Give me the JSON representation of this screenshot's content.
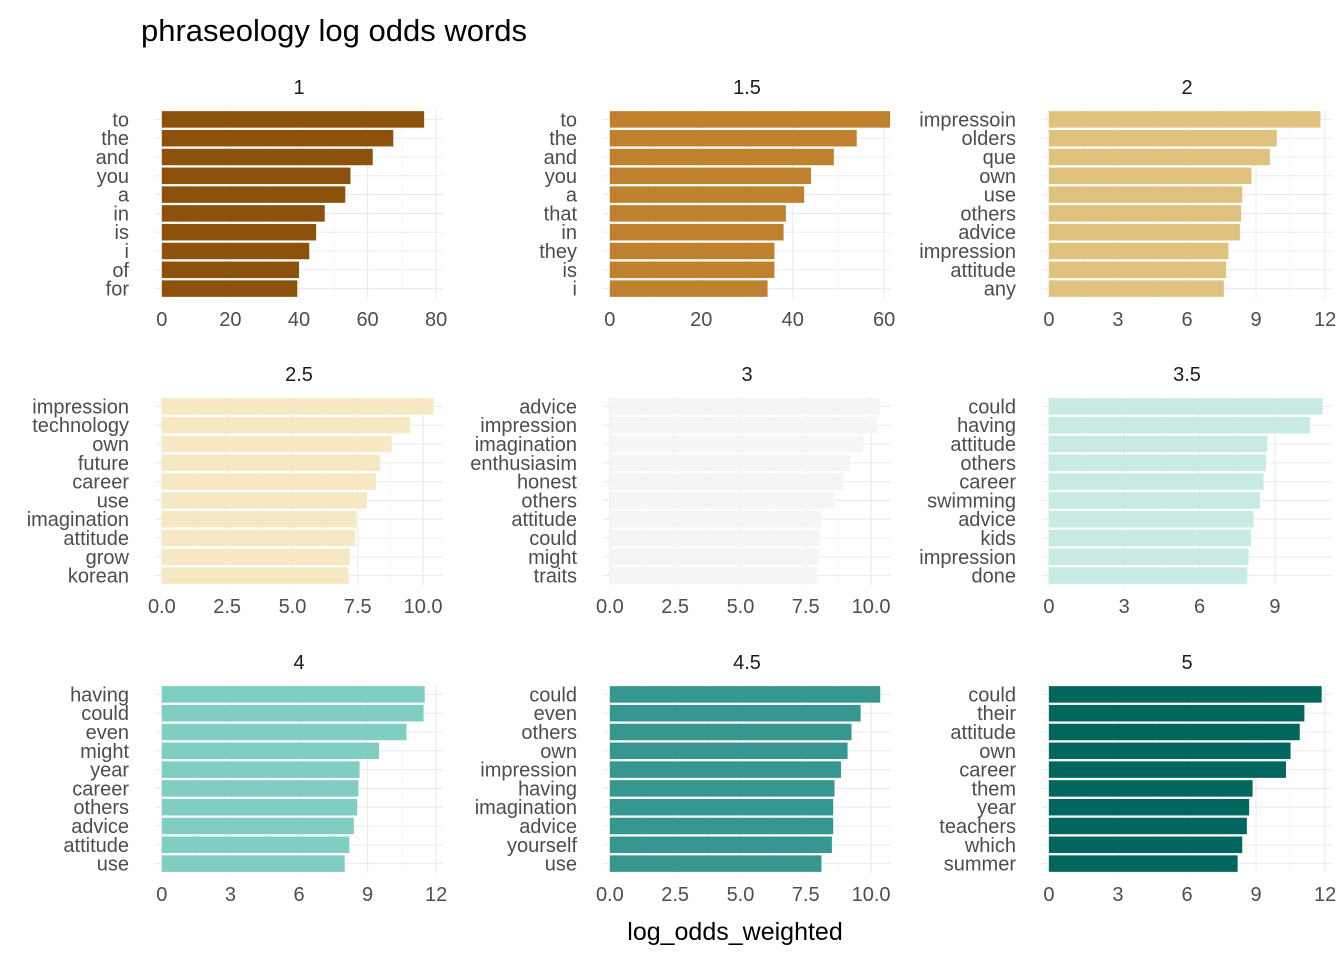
{
  "chart_data": {
    "type": "bar",
    "orientation": "horizontal",
    "title": "phraseology log odds words",
    "xlabel": "log_odds_weighted",
    "ylabel": "",
    "grid": true,
    "legend": "none",
    "facets": [
      {
        "label": "1",
        "color": "#8C510A",
        "xlim": [
          0,
          80
        ],
        "xticks": [
          "0",
          "20",
          "40",
          "60",
          "80"
        ],
        "xtick_values": [
          0,
          20,
          40,
          60,
          80
        ],
        "categories": [
          "to",
          "the",
          "and",
          "you",
          "a",
          "in",
          "is",
          "i",
          "of",
          "for"
        ],
        "values": [
          76.5,
          67.5,
          61.5,
          55,
          53.5,
          47.5,
          45,
          43,
          40,
          39.5
        ]
      },
      {
        "label": "1.5",
        "color": "#BF812D",
        "xlim": [
          0,
          60
        ],
        "xticks": [
          "0",
          "20",
          "40",
          "60"
        ],
        "xtick_values": [
          0,
          20,
          40,
          60
        ],
        "categories": [
          "to",
          "the",
          "and",
          "you",
          "a",
          "that",
          "in",
          "they",
          "is",
          "i"
        ],
        "values": [
          61.3,
          54,
          49,
          44,
          42.5,
          38.5,
          38,
          36,
          36,
          34.5
        ]
      },
      {
        "label": "2",
        "color": "#DFC27D",
        "xlim": [
          0,
          12
        ],
        "xticks": [
          "0",
          "3",
          "6",
          "9",
          "12"
        ],
        "xtick_values": [
          0,
          3,
          6,
          9,
          12
        ],
        "categories": [
          "impressoin",
          "olders",
          "que",
          "own",
          "use",
          "others",
          "advice",
          "impression",
          "attitude",
          "any"
        ],
        "values": [
          11.8,
          9.9,
          9.6,
          8.8,
          8.4,
          8.35,
          8.3,
          7.8,
          7.7,
          7.6
        ]
      },
      {
        "label": "2.5",
        "color": "#F6E8C3",
        "xlim": [
          0,
          10.5
        ],
        "xticks": [
          "0.0",
          "2.5",
          "5.0",
          "7.5",
          "10.0"
        ],
        "xtick_values": [
          0,
          2.5,
          5,
          7.5,
          10
        ],
        "categories": [
          "impression",
          "technology",
          "own",
          "future",
          "career",
          "use",
          "imagination",
          "attitude",
          "grow",
          "korean"
        ],
        "values": [
          10.4,
          9.5,
          8.8,
          8.35,
          8.2,
          7.85,
          7.45,
          7.4,
          7.2,
          7.15
        ]
      },
      {
        "label": "3",
        "color": "#F5F5F5",
        "xlim": [
          0,
          10.5
        ],
        "xticks": [
          "0.0",
          "2.5",
          "5.0",
          "7.5",
          "10.0"
        ],
        "xtick_values": [
          0,
          2.5,
          5,
          7.5,
          10
        ],
        "categories": [
          "advice",
          "impression",
          "imagination",
          "enthusiasim",
          "honest",
          "others",
          "attitude",
          "could",
          "might",
          "traits"
        ],
        "values": [
          10.35,
          10.25,
          9.7,
          9.2,
          8.95,
          8.6,
          8.1,
          8.05,
          8.0,
          7.95
        ]
      },
      {
        "label": "3.5",
        "color": "#C7EAE5",
        "xlim": [
          0,
          11
        ],
        "xticks": [
          "0",
          "3",
          "6",
          "9"
        ],
        "xtick_values": [
          0,
          3,
          6,
          9
        ],
        "categories": [
          "could",
          "having",
          "attitude",
          "others",
          "career",
          "swimming",
          "advice",
          "kids",
          "impression",
          "done"
        ],
        "values": [
          10.9,
          10.4,
          8.7,
          8.65,
          8.55,
          8.4,
          8.15,
          8.05,
          7.95,
          7.9
        ]
      },
      {
        "label": "4",
        "color": "#80CDC1",
        "xlim": [
          0,
          12
        ],
        "xticks": [
          "0",
          "3",
          "6",
          "9",
          "12"
        ],
        "xtick_values": [
          0,
          3,
          6,
          9,
          12
        ],
        "categories": [
          "having",
          "could",
          "even",
          "might",
          "year",
          "career",
          "others",
          "advice",
          "attitude",
          "use"
        ],
        "values": [
          11.5,
          11.45,
          10.7,
          9.5,
          8.65,
          8.6,
          8.55,
          8.4,
          8.2,
          8.0
        ]
      },
      {
        "label": "4.5",
        "color": "#35978F",
        "xlim": [
          0,
          10.5
        ],
        "xticks": [
          "0.0",
          "2.5",
          "5.0",
          "7.5",
          "10.0"
        ],
        "xtick_values": [
          0,
          2.5,
          5,
          7.5,
          10
        ],
        "categories": [
          "could",
          "even",
          "others",
          "own",
          "impression",
          "having",
          "imagination",
          "advice",
          "yourself",
          "use"
        ],
        "values": [
          10.35,
          9.6,
          9.25,
          9.1,
          8.85,
          8.6,
          8.55,
          8.55,
          8.5,
          8.1
        ]
      },
      {
        "label": "5",
        "color": "#01665E",
        "xlim": [
          0,
          12
        ],
        "xticks": [
          "0",
          "3",
          "6",
          "9",
          "12"
        ],
        "xtick_values": [
          0,
          3,
          6,
          9,
          12
        ],
        "categories": [
          "could",
          "their",
          "attitude",
          "own",
          "career",
          "them",
          "year",
          "teachers",
          "which",
          "summer"
        ],
        "values": [
          11.85,
          11.1,
          10.9,
          10.5,
          10.3,
          8.85,
          8.7,
          8.6,
          8.4,
          8.2
        ]
      }
    ]
  }
}
